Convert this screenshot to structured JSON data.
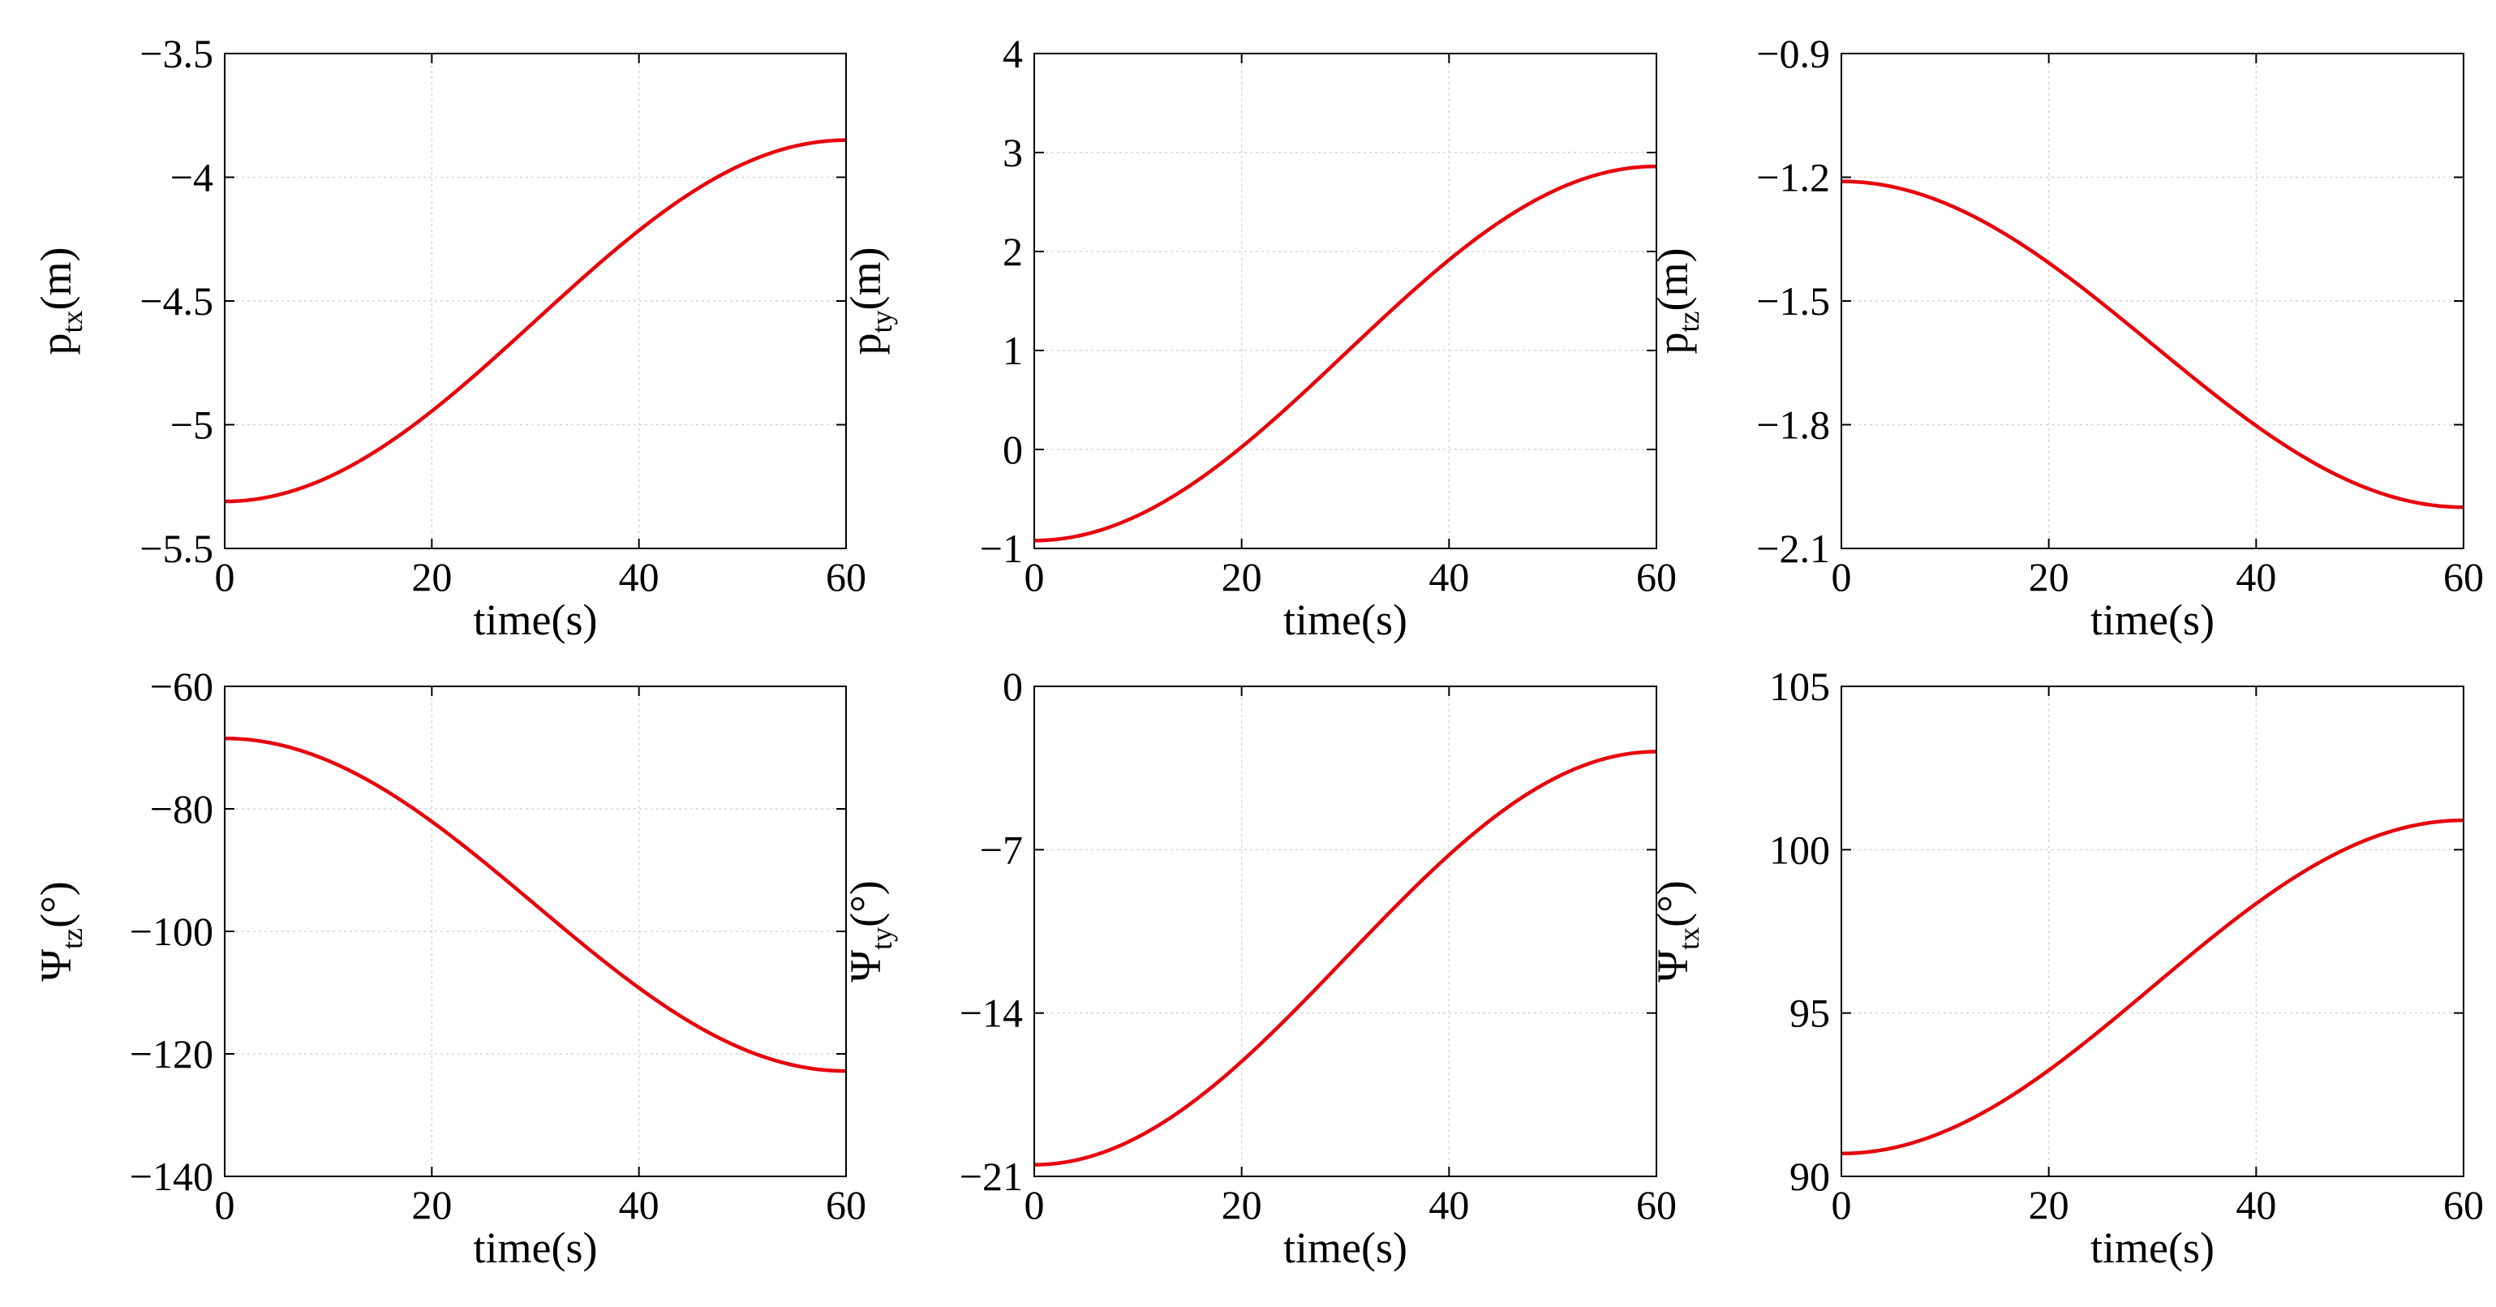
{
  "figure": {
    "curve_color": "#e8000b",
    "grid": true,
    "background": "#ffffff"
  },
  "chart_data": [
    {
      "type": "line",
      "xlabel": "time(s)",
      "ylabel": {
        "symbol": "p",
        "sub": "tx",
        "unit": "(m)"
      },
      "xlim": [
        0,
        60
      ],
      "xticks": [
        0,
        20,
        40,
        60
      ],
      "xtick_labels": [
        "0",
        "20",
        "40",
        "60"
      ],
      "ylim": [
        -5.5,
        -3.5
      ],
      "yticks": [
        -5.5,
        -5,
        -4.5,
        -4,
        -3.5
      ],
      "ytick_labels": [
        "−5.5",
        "−5",
        "−4.5",
        "−4",
        "−3.5"
      ],
      "series": [
        {
          "start": -5.31,
          "end": -3.85
        }
      ]
    },
    {
      "type": "line",
      "xlabel": "time(s)",
      "ylabel": {
        "symbol": "p",
        "sub": "ty",
        "unit": "(m)"
      },
      "xlim": [
        0,
        60
      ],
      "xticks": [
        0,
        20,
        40,
        60
      ],
      "xtick_labels": [
        "0",
        "20",
        "40",
        "60"
      ],
      "ylim": [
        -1,
        4
      ],
      "yticks": [
        -1,
        0,
        1,
        2,
        3,
        4
      ],
      "ytick_labels": [
        "−1",
        "0",
        "1",
        "2",
        "3",
        "4"
      ],
      "series": [
        {
          "start": -0.92,
          "end": 2.86
        }
      ]
    },
    {
      "type": "line",
      "xlabel": "time(s)",
      "ylabel": {
        "symbol": "p",
        "sub": "tz",
        "unit": "(m)"
      },
      "xlim": [
        0,
        60
      ],
      "xticks": [
        0,
        20,
        40,
        60
      ],
      "xtick_labels": [
        "0",
        "20",
        "40",
        "60"
      ],
      "ylim": [
        -2.1,
        -0.9
      ],
      "yticks": [
        -2.1,
        -1.8,
        -1.5,
        -1.2,
        -0.9
      ],
      "ytick_labels": [
        "−2.1",
        "−1.8",
        "−1.5",
        "−1.2",
        "−0.9"
      ],
      "series": [
        {
          "start": -1.21,
          "end": -2.0
        }
      ]
    },
    {
      "type": "line",
      "xlabel": "time(s)",
      "ylabel": {
        "symbol": "Ψ",
        "sub": "tz",
        "unit": "(°)"
      },
      "xlim": [
        0,
        60
      ],
      "xticks": [
        0,
        20,
        40,
        60
      ],
      "xtick_labels": [
        "0",
        "20",
        "40",
        "60"
      ],
      "ylim": [
        -140,
        -60
      ],
      "yticks": [
        -140,
        -120,
        -100,
        -80,
        -60
      ],
      "ytick_labels": [
        "−140",
        "−120",
        "−100",
        "−80",
        "−60"
      ],
      "series": [
        {
          "start": -68.5,
          "end": -122.8
        }
      ]
    },
    {
      "type": "line",
      "xlabel": "time(s)",
      "ylabel": {
        "symbol": "Ψ",
        "sub": "ty",
        "unit": "(°)"
      },
      "xlim": [
        0,
        60
      ],
      "xticks": [
        0,
        20,
        40,
        60
      ],
      "xtick_labels": [
        "0",
        "20",
        "40",
        "60"
      ],
      "ylim": [
        -21,
        0
      ],
      "yticks": [
        -21,
        -14,
        -7,
        0
      ],
      "ytick_labels": [
        "−21",
        "−14",
        "−7",
        "0"
      ],
      "series": [
        {
          "start": -20.5,
          "end": -2.8
        }
      ]
    },
    {
      "type": "line",
      "xlabel": "time(s)",
      "ylabel": {
        "symbol": "Ψ",
        "sub": "tx",
        "unit": "(°)"
      },
      "xlim": [
        0,
        60
      ],
      "xticks": [
        0,
        20,
        40,
        60
      ],
      "xtick_labels": [
        "0",
        "20",
        "40",
        "60"
      ],
      "ylim": [
        90,
        105
      ],
      "yticks": [
        90,
        95,
        100,
        105
      ],
      "ytick_labels": [
        "90",
        "95",
        "100",
        "105"
      ],
      "series": [
        {
          "start": 90.7,
          "end": 100.9
        }
      ]
    }
  ]
}
